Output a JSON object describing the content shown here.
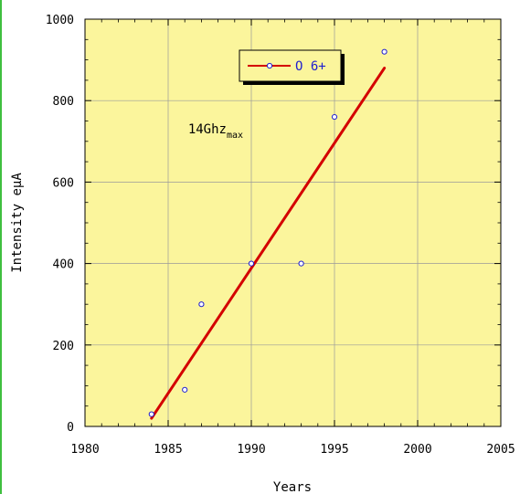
{
  "chart_data": {
    "type": "scatter",
    "title": "",
    "xlabel": "Years",
    "ylabel": "Intensity eμA",
    "xlim": [
      1980,
      2005
    ],
    "ylim": [
      0,
      1000
    ],
    "x_ticks": [
      1980,
      1985,
      1990,
      1995,
      2000,
      2005
    ],
    "y_ticks": [
      0,
      200,
      400,
      600,
      800,
      1000
    ],
    "grid": true,
    "legend_position": "top-right",
    "series": [
      {
        "name": "O 6+",
        "marker": "open-circle",
        "color": "#1f1fd0",
        "x": [
          1984,
          1986,
          1987,
          1990,
          1993,
          1995,
          1998
        ],
        "y": [
          30,
          90,
          300,
          400,
          400,
          760,
          920
        ]
      }
    ],
    "fit_line": {
      "color": "#d40000",
      "x": [
        1984,
        1998
      ],
      "y": [
        20,
        880
      ]
    },
    "annotation": {
      "text": "14Ghz",
      "subscript": "max",
      "x": 1986.2,
      "y": 720
    },
    "colors": {
      "plot_background": "#fbf59c",
      "grid": "#9a9a9a",
      "left_bar": "#3fbf3f"
    }
  }
}
